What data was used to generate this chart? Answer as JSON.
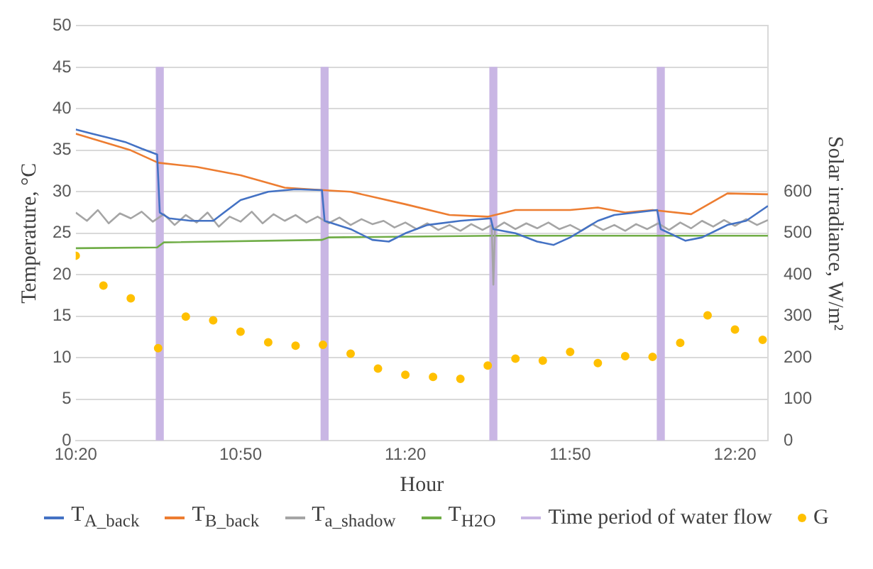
{
  "chart_data": {
    "type": "line",
    "xlabel": "Hour",
    "ylabel": "Temperature, °C",
    "y2label": "Solar irradiance, W/m²",
    "xlim": [
      10.333,
      12.433
    ],
    "xticks": [
      {
        "value": 10.3333,
        "label": "10:20"
      },
      {
        "value": 10.8333,
        "label": "10:50"
      },
      {
        "value": 11.3333,
        "label": "11:20"
      },
      {
        "value": 11.8333,
        "label": "11:50"
      },
      {
        "value": 12.3333,
        "label": "12:20"
      }
    ],
    "ylim": [
      0,
      50
    ],
    "yticks": [
      0,
      5,
      10,
      15,
      20,
      25,
      30,
      35,
      40,
      45,
      50
    ],
    "y2lim": [
      0,
      1000
    ],
    "y2ticks": [
      0,
      100,
      200,
      300,
      400,
      500,
      600
    ],
    "grid": "y",
    "legend": "bottom",
    "marker": "none",
    "line_style": "solid",
    "series": [
      {
        "name": "T$_{A_back}$",
        "color": "#4472c4",
        "x": [
          10.333,
          10.383,
          10.433,
          10.483,
          10.533,
          10.58,
          10.588,
          10.617,
          10.683,
          10.75,
          10.783,
          10.833,
          10.917,
          11.0,
          11.08,
          11.088,
          11.167,
          11.233,
          11.283,
          11.333,
          11.4,
          11.5,
          11.592,
          11.6,
          11.667,
          11.733,
          11.783,
          11.833,
          11.917,
          11.967,
          12.097,
          12.108,
          12.183,
          12.233,
          12.31,
          12.367,
          12.433
        ],
        "values": [
          37.5,
          37,
          36.5,
          36,
          35.2,
          34.5,
          27.5,
          26.8,
          26.5,
          26.5,
          27.5,
          29,
          30,
          30.3,
          30.2,
          26.5,
          25.5,
          24.2,
          24,
          25,
          26,
          26.5,
          26.8,
          25.5,
          25,
          24,
          23.6,
          24.5,
          26.5,
          27.2,
          27.8,
          25.5,
          24.1,
          24.5,
          26,
          26.5,
          28.3
        ]
      },
      {
        "name": "T$_{B_back}$",
        "color": "#ed7d31",
        "x": [
          10.333,
          10.5,
          10.583,
          10.7,
          10.833,
          10.967,
          11.083,
          11.167,
          11.333,
          11.467,
          11.583,
          11.667,
          11.833,
          11.917,
          12.0,
          12.083,
          12.2,
          12.31,
          12.433
        ],
        "values": [
          37,
          35,
          33.5,
          33,
          32,
          30.5,
          30.2,
          30,
          28.5,
          27.2,
          27,
          27.8,
          27.8,
          28.1,
          27.5,
          27.8,
          27.3,
          29.8,
          29.7
        ]
      },
      {
        "name": "T$_{a_shadow}$",
        "color": "#a5a5a5",
        "x": [
          10.333,
          10.367,
          10.4,
          10.433,
          10.467,
          10.5,
          10.533,
          10.567,
          10.6,
          10.633,
          10.667,
          10.7,
          10.733,
          10.767,
          10.8,
          10.833,
          10.867,
          10.9,
          10.933,
          10.967,
          11.0,
          11.033,
          11.067,
          11.1,
          11.133,
          11.167,
          11.2,
          11.233,
          11.267,
          11.3,
          11.333,
          11.367,
          11.4,
          11.433,
          11.467,
          11.5,
          11.533,
          11.567,
          11.595,
          11.6,
          11.605,
          11.633,
          11.667,
          11.7,
          11.733,
          11.767,
          11.8,
          11.833,
          11.867,
          11.9,
          11.933,
          11.967,
          12.0,
          12.033,
          12.067,
          12.1,
          12.133,
          12.167,
          12.2,
          12.233,
          12.267,
          12.3,
          12.333,
          12.367,
          12.4,
          12.433
        ],
        "values": [
          27.5,
          26.5,
          27.8,
          26.2,
          27.4,
          26.8,
          27.6,
          26.4,
          27.3,
          26,
          27.2,
          26.3,
          27.5,
          25.8,
          27,
          26.4,
          27.6,
          26.2,
          27.3,
          26.5,
          27.2,
          26.3,
          27,
          26.2,
          26.9,
          26,
          26.7,
          26.1,
          26.5,
          25.7,
          26.3,
          25.5,
          26.2,
          25.4,
          26,
          25.3,
          26.1,
          25.4,
          26,
          18.8,
          25.6,
          26.3,
          25.5,
          26.2,
          25.6,
          26.3,
          25.5,
          26,
          25.3,
          26.1,
          25.4,
          26,
          25.3,
          26.1,
          25.5,
          26.2,
          25.4,
          26.3,
          25.6,
          26.5,
          25.8,
          26.6,
          25.9,
          26.7,
          26,
          26.6
        ]
      },
      {
        "name": "T$_{H2O}$",
        "color": "#70ad47",
        "x": [
          10.333,
          10.58,
          10.6,
          11.08,
          11.1,
          11.6,
          12.433
        ],
        "values": [
          23.2,
          23.3,
          23.9,
          24.2,
          24.5,
          24.7,
          24.7
        ]
      },
      {
        "name": "Time period of water flow",
        "type": "bar",
        "color": "#c9b6e4",
        "x": [
          10.588,
          11.088,
          11.6,
          12.108
        ],
        "values": [
          45,
          45,
          45,
          45
        ]
      },
      {
        "name": "G",
        "type": "scatter",
        "axis": "y2",
        "marker": "circle",
        "color": "#ffc000",
        "x": [
          10.333,
          10.417,
          10.5,
          10.583,
          10.667,
          10.75,
          10.833,
          10.917,
          11.0,
          11.083,
          11.167,
          11.25,
          11.333,
          11.417,
          11.5,
          11.583,
          11.667,
          11.75,
          11.833,
          11.917,
          12.0,
          12.083,
          12.167,
          12.25,
          12.333,
          12.417
        ],
        "values": [
          446,
          374,
          343,
          223,
          299,
          290,
          263,
          237,
          229,
          231,
          210,
          174,
          159,
          154,
          149,
          181,
          198,
          193,
          214,
          187,
          204,
          202,
          236,
          302,
          268,
          243
        ]
      }
    ]
  }
}
